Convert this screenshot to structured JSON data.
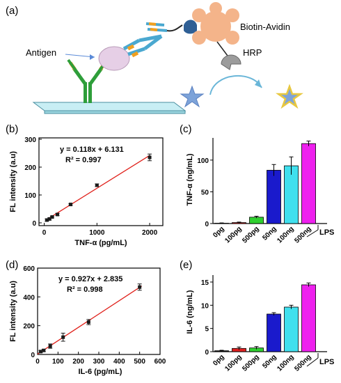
{
  "panels": {
    "a": {
      "label": "(a)",
      "antigen_label": "Antigen",
      "biotin_label": "Biotin-Avidin",
      "hrp_label": "HRP"
    }
  },
  "colors": {
    "fit_line": "#e0201a",
    "points": "#1a1a1a",
    "ctrl": "#1a1a1a",
    "low": "#e02020",
    "mid": "#30d030",
    "b1": "#1a1acc",
    "b2": "#40e0ee",
    "b3": "#ee20ee"
  },
  "chart_data": [
    {
      "panel": "(b)",
      "type": "scatter",
      "xlabel": "TNF-α (pg/mL)",
      "ylabel": "FL intensity (a.u)",
      "equation": "y = 0.118x + 6.131",
      "r2": "R² = 0.997",
      "xlim": [
        -100,
        2250
      ],
      "ylim": [
        -10,
        305
      ],
      "xticks": [
        0,
        1000,
        2000
      ],
      "yticks": [
        0,
        100,
        200,
        300
      ],
      "points": [
        {
          "x": 50,
          "y": 10,
          "err": 4
        },
        {
          "x": 100,
          "y": 14,
          "err": 4
        },
        {
          "x": 150,
          "y": 21,
          "err": 3
        },
        {
          "x": 250,
          "y": 30,
          "err": 4
        },
        {
          "x": 500,
          "y": 66,
          "err": 3
        },
        {
          "x": 1000,
          "y": 135,
          "err": 5
        },
        {
          "x": 2000,
          "y": 235,
          "err": 12
        }
      ],
      "fit": {
        "slope": 0.118,
        "intercept": 6.131,
        "x_range": [
          50,
          2000
        ]
      }
    },
    {
      "panel": "(c)",
      "type": "bar",
      "ylabel": "TNF-α (ng/mL)",
      "ylim": [
        0,
        135
      ],
      "yticks": [
        0,
        50,
        100
      ],
      "categories": [
        "0pg",
        "100pg",
        "500pg",
        "50ng",
        "100ng",
        "500ng"
      ],
      "values": [
        0.5,
        1.5,
        10,
        84,
        91,
        126
      ],
      "errors": [
        0.5,
        0.8,
        1.5,
        9,
        14,
        4
      ],
      "group_label": "LPS"
    },
    {
      "panel": "(d)",
      "type": "scatter",
      "xlabel": "IL-6 (pg/mL)",
      "ylabel": "FL intensity (a.u)",
      "equation": "y = 0.927x + 2.835",
      "r2": "R² = 0.998",
      "xlim": [
        0,
        600
      ],
      "ylim": [
        0,
        600
      ],
      "xticks": [
        0,
        100,
        200,
        300,
        400,
        500,
        600
      ],
      "yticks": [
        0,
        200,
        400,
        600
      ],
      "points": [
        {
          "x": 15,
          "y": 20,
          "err": 8
        },
        {
          "x": 30,
          "y": 28,
          "err": 8
        },
        {
          "x": 62,
          "y": 58,
          "err": 15
        },
        {
          "x": 125,
          "y": 120,
          "err": 28
        },
        {
          "x": 250,
          "y": 225,
          "err": 18
        },
        {
          "x": 500,
          "y": 468,
          "err": 22
        }
      ],
      "fit": {
        "slope": 0.927,
        "intercept": 2.835,
        "x_range": [
          0,
          510
        ]
      }
    },
    {
      "panel": "(e)",
      "type": "bar",
      "ylabel": "IL-6 (ng/mL)",
      "ylim": [
        0,
        16.5
      ],
      "yticks": [
        0,
        5,
        10,
        15
      ],
      "categories": [
        "0pg",
        "100pg",
        "500pg",
        "50ng",
        "100ng",
        "500ng"
      ],
      "values": [
        0.2,
        0.7,
        0.8,
        8.1,
        9.6,
        14.4
      ],
      "errors": [
        0.1,
        0.3,
        0.3,
        0.3,
        0.4,
        0.4
      ],
      "group_label": "LPS"
    }
  ]
}
